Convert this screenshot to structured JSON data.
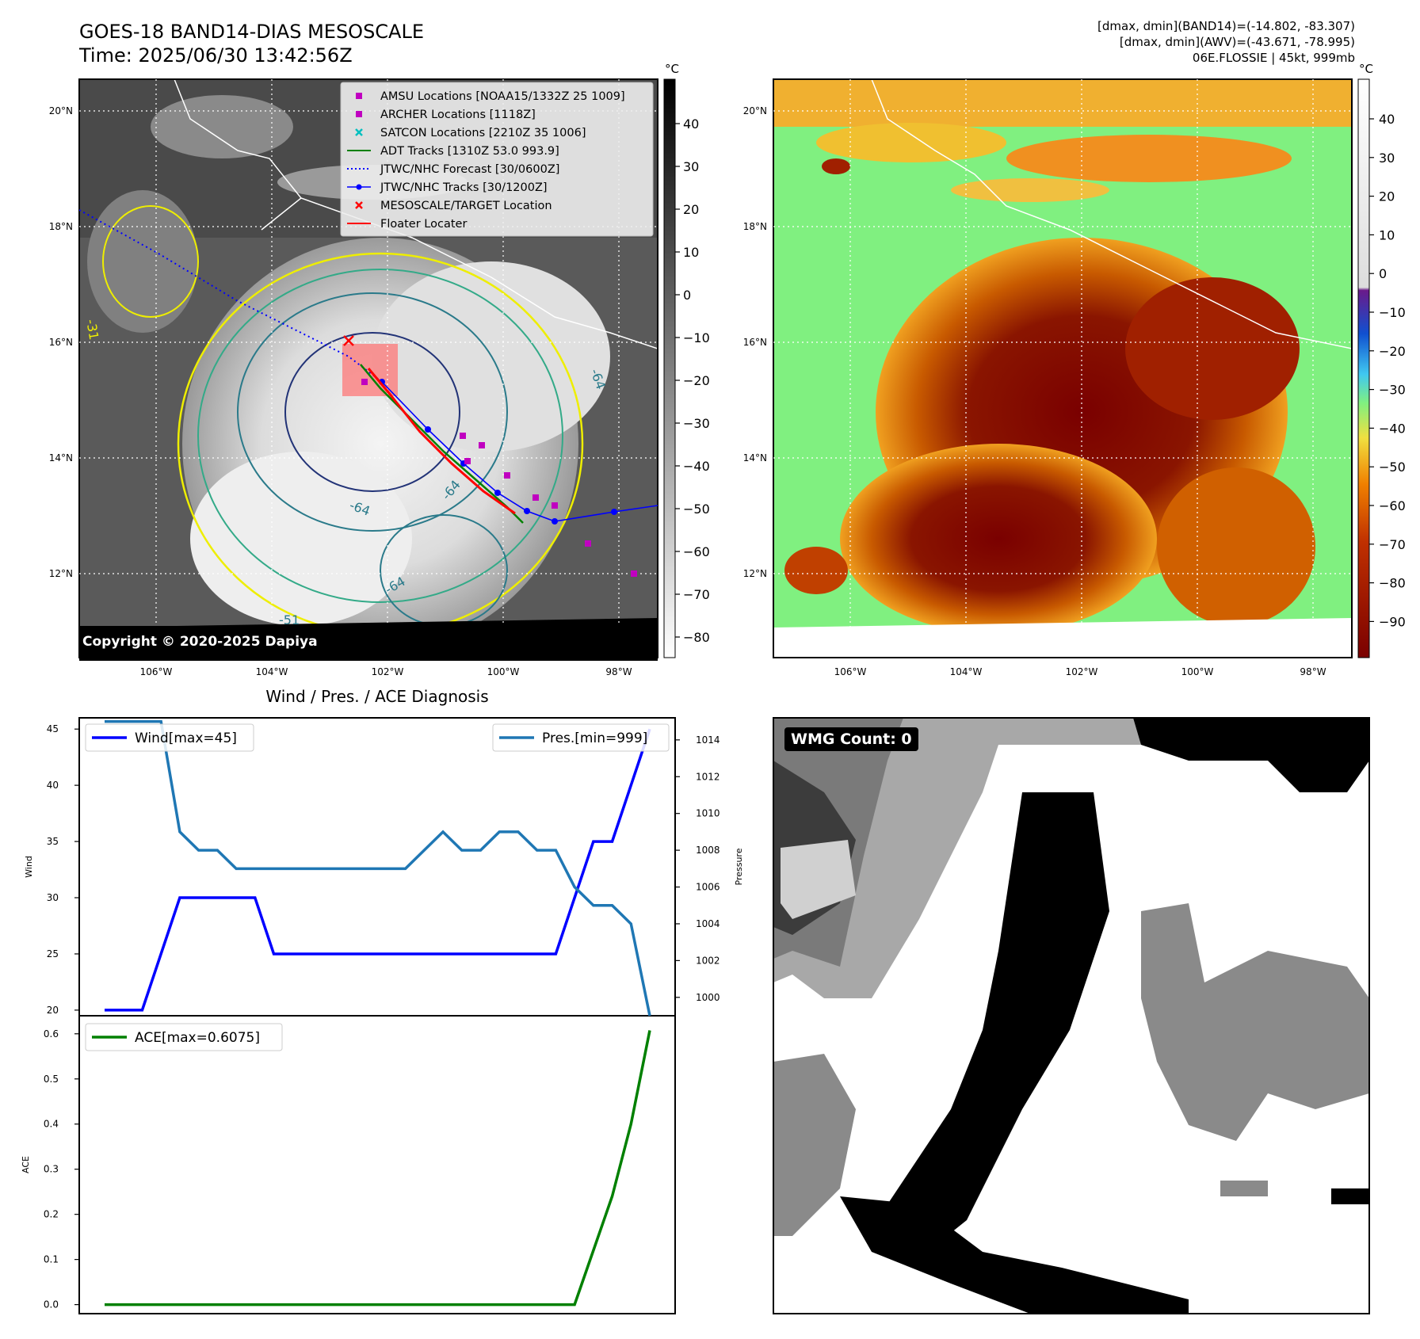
{
  "title": {
    "line1": "GOES-18 BAND14-DIAS MESOSCALE",
    "line2": "Time: 2025/06/30 13:42:56Z"
  },
  "info": {
    "line1": "[dmax, dmin](BAND14)=(-14.802, -83.307)",
    "line2": "[dmax, dmin](AWV)=(-43.671, -78.995)",
    "line3": "06E.FLOSSIE | 45kt, 999mb"
  },
  "colorbar_unit": "°C",
  "copyright": "Copyright © 2020-2025 Dapiya",
  "wmg_label": "WMG Count: 0",
  "colors": {
    "wind": "#0000ff",
    "pressure": "#1f77b4",
    "ace": "#008000",
    "track": "#0000ff",
    "forecast": "#0000ff",
    "adt": "#008000",
    "floater": "#ff0000",
    "amsu": "#c000c0",
    "satcon": "#00bfbf"
  },
  "map": {
    "lon_labels": [
      "106°W",
      "104°W",
      "102°W",
      "100°W",
      "98°W"
    ],
    "lat_labels": [
      "20°N",
      "18°N",
      "16°N",
      "14°N",
      "12°N"
    ],
    "legend": [
      {
        "label": "AMSU Locations [NOAA15/1332Z 25 1009]",
        "marker": "square",
        "color": "#c000c0"
      },
      {
        "label": "ARCHER Locations [1118Z]",
        "marker": "square",
        "color": "#c000c0"
      },
      {
        "label": "SATCON Locations [2210Z 35 1006]",
        "marker": "x",
        "color": "#00bfbf"
      },
      {
        "label": "ADT Tracks [1310Z 53.0 993.9]",
        "marker": "line",
        "color": "#008000"
      },
      {
        "label": "JTWC/NHC Forecast [30/0600Z]",
        "marker": "dotted",
        "color": "#0000ff"
      },
      {
        "label": "JTWC/NHC Tracks [30/1200Z]",
        "marker": "line-dot",
        "color": "#0000ff"
      },
      {
        "label": "MESOSCALE/TARGET Location",
        "marker": "x",
        "color": "#ff0000"
      },
      {
        "label": "Floater Locater",
        "marker": "line",
        "color": "#ff0000"
      }
    ],
    "contour_labels": [
      "-31",
      "-64",
      "-64",
      "-64",
      "-64",
      "-51"
    ]
  },
  "colorbar_ir": {
    "ticks": [
      "40",
      "30",
      "20",
      "10",
      "0",
      "−10",
      "−20",
      "−30",
      "−40",
      "−50",
      "−60",
      "−70",
      "−80"
    ]
  },
  "colorbar_awv": {
    "ticks": [
      "40",
      "30",
      "20",
      "10",
      "0",
      "−10",
      "−20",
      "−30",
      "−40",
      "−50",
      "−60",
      "−70",
      "−80",
      "−90"
    ]
  },
  "chart_data": [
    {
      "type": "line",
      "title": "Wind / Pres. / ACE Diagnosis",
      "ylabel": "Wind",
      "y2label": "Pressure",
      "ylim": [
        19.5,
        46
      ],
      "y2lim": [
        999,
        1015.2
      ],
      "yticks": [
        20,
        25,
        30,
        35,
        40,
        45
      ],
      "y2ticks": [
        1000,
        1002,
        1004,
        1006,
        1008,
        1010,
        1012,
        1014
      ],
      "series": [
        {
          "name": "Wind[max=45]",
          "axis": "left",
          "values": [
            20,
            20,
            20,
            25,
            30,
            30,
            30,
            30,
            30,
            25,
            25,
            25,
            25,
            25,
            25,
            25,
            25,
            25,
            25,
            25,
            25,
            25,
            25,
            25,
            25,
            30,
            35,
            35,
            40,
            45
          ]
        },
        {
          "name": "Pres.[min=999]",
          "axis": "right",
          "values": [
            1015,
            1015,
            1015,
            1015,
            1009,
            1008,
            1008,
            1007,
            1007,
            1007,
            1007,
            1007,
            1007,
            1007,
            1007,
            1007,
            1007,
            1008,
            1009,
            1008,
            1008,
            1009,
            1009,
            1008,
            1008,
            1006,
            1005,
            1005,
            1004,
            999
          ]
        }
      ]
    },
    {
      "type": "line",
      "ylabel": "ACE",
      "ylim": [
        -0.02,
        0.64
      ],
      "yticks": [
        0.0,
        0.1,
        0.2,
        0.3,
        0.4,
        0.5,
        0.6
      ],
      "series": [
        {
          "name": "ACE[max=0.6075]",
          "values": [
            0,
            0,
            0,
            0,
            0,
            0,
            0,
            0,
            0,
            0,
            0,
            0,
            0,
            0,
            0,
            0,
            0,
            0,
            0,
            0,
            0,
            0,
            0,
            0,
            0,
            0,
            0.12,
            0.24,
            0.4,
            0.6075
          ]
        }
      ]
    }
  ]
}
